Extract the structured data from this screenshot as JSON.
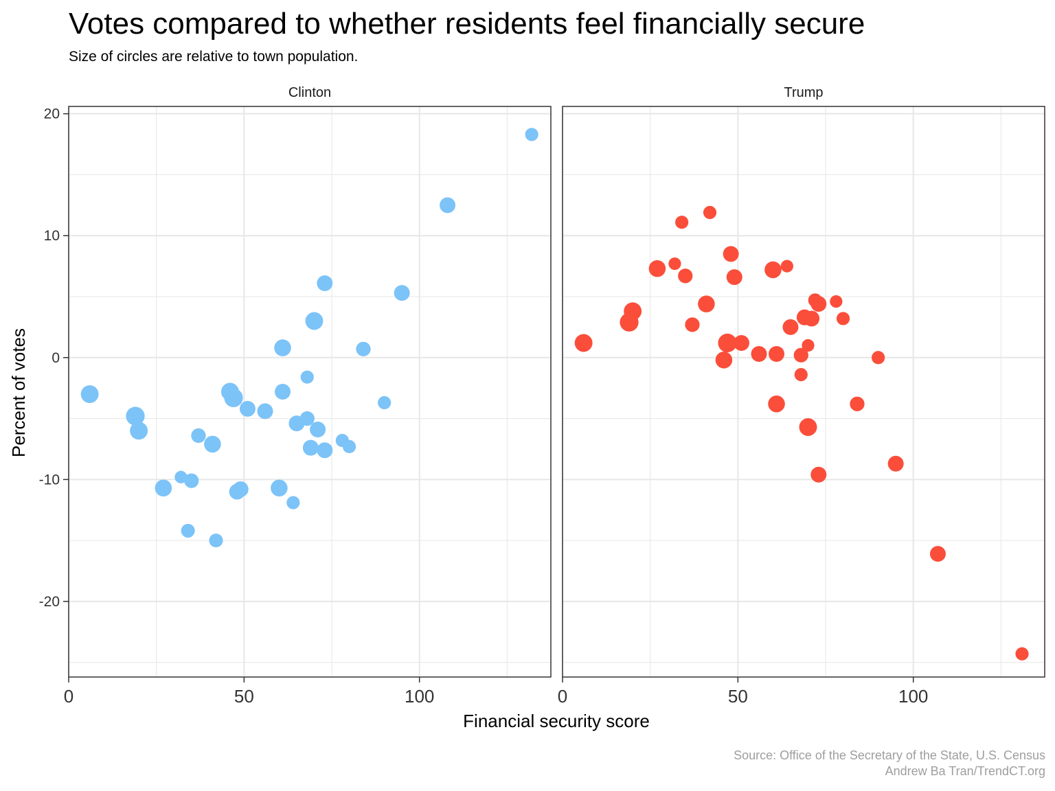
{
  "title": "Votes compared to whether residents feel financially secure",
  "subtitle": "Size of circles are relative to town population.",
  "caption": {
    "line1": "Source: Office of the Secretary of the State, U.S. Census",
    "line2": "Andrew Ba Tran/TrendCT.org"
  },
  "colors": {
    "clinton": "#7cc3f8",
    "trump": "#fa4e3b",
    "grid": "#e6e6e6",
    "panel_border": "#333333",
    "caption": "#9e9e9e"
  },
  "chart_data": {
    "type": "scatter",
    "xlabel": "Financial security score",
    "ylabel": "Percent of votes",
    "xlim": [
      0,
      138
    ],
    "ylim": [
      -26.2,
      20.6
    ],
    "x_ticks": [
      0,
      50,
      100
    ],
    "y_ticks": [
      20,
      10,
      0,
      -10,
      -20
    ],
    "grid": true,
    "point_size": "relative to town population",
    "facets": [
      {
        "name": "Clinton",
        "color": "#7cc3f8",
        "points": [
          {
            "x": 132,
            "y": 18.3,
            "size": 1
          },
          {
            "x": 108,
            "y": 12.5,
            "size": 2
          },
          {
            "x": 73,
            "y": 6.1,
            "size": 2
          },
          {
            "x": 95,
            "y": 5.3,
            "size": 2
          },
          {
            "x": 70,
            "y": 3.0,
            "size": 3
          },
          {
            "x": 61,
            "y": 0.8,
            "size": 2.5
          },
          {
            "x": 84,
            "y": 0.7,
            "size": 1.5
          },
          {
            "x": 68,
            "y": -1.6,
            "size": 1
          },
          {
            "x": 6,
            "y": -3.0,
            "size": 3
          },
          {
            "x": 46,
            "y": -2.8,
            "size": 3
          },
          {
            "x": 47,
            "y": -3.3,
            "size": 3.5
          },
          {
            "x": 61,
            "y": -2.8,
            "size": 2
          },
          {
            "x": 90,
            "y": -3.7,
            "size": 1
          },
          {
            "x": 51,
            "y": -4.2,
            "size": 2
          },
          {
            "x": 56,
            "y": -4.4,
            "size": 2
          },
          {
            "x": 19,
            "y": -4.8,
            "size": 3.5
          },
          {
            "x": 68,
            "y": -5.0,
            "size": 1.5
          },
          {
            "x": 65,
            "y": -5.4,
            "size": 2
          },
          {
            "x": 71,
            "y": -5.9,
            "size": 2
          },
          {
            "x": 20,
            "y": -6.0,
            "size": 3
          },
          {
            "x": 37,
            "y": -6.4,
            "size": 1.5
          },
          {
            "x": 78,
            "y": -6.8,
            "size": 1
          },
          {
            "x": 41,
            "y": -7.1,
            "size": 2.5
          },
          {
            "x": 80,
            "y": -7.3,
            "size": 1
          },
          {
            "x": 69,
            "y": -7.4,
            "size": 2
          },
          {
            "x": 73,
            "y": -7.6,
            "size": 2
          },
          {
            "x": 32,
            "y": -9.8,
            "size": 0.8
          },
          {
            "x": 35,
            "y": -10.1,
            "size": 1.5
          },
          {
            "x": 27,
            "y": -10.7,
            "size": 2.5
          },
          {
            "x": 60,
            "y": -10.7,
            "size": 2.5
          },
          {
            "x": 49,
            "y": -10.8,
            "size": 2
          },
          {
            "x": 48,
            "y": -11.0,
            "size": 2
          },
          {
            "x": 64,
            "y": -11.9,
            "size": 1
          },
          {
            "x": 34,
            "y": -14.2,
            "size": 1.2
          },
          {
            "x": 42,
            "y": -15.0,
            "size": 1.2
          }
        ]
      },
      {
        "name": "Trump",
        "color": "#fa4e3b",
        "points": [
          {
            "x": 42,
            "y": 11.9,
            "size": 1
          },
          {
            "x": 34,
            "y": 11.1,
            "size": 1
          },
          {
            "x": 48,
            "y": 8.5,
            "size": 2
          },
          {
            "x": 32,
            "y": 7.7,
            "size": 0.8
          },
          {
            "x": 64,
            "y": 7.5,
            "size": 0.8
          },
          {
            "x": 27,
            "y": 7.3,
            "size": 2.5
          },
          {
            "x": 60,
            "y": 7.2,
            "size": 2.5
          },
          {
            "x": 35,
            "y": 6.7,
            "size": 1.5
          },
          {
            "x": 49,
            "y": 6.6,
            "size": 2
          },
          {
            "x": 72,
            "y": 4.7,
            "size": 1.2
          },
          {
            "x": 78,
            "y": 4.6,
            "size": 0.8
          },
          {
            "x": 41,
            "y": 4.4,
            "size": 2.5
          },
          {
            "x": 73,
            "y": 4.4,
            "size": 2
          },
          {
            "x": 20,
            "y": 3.8,
            "size": 3
          },
          {
            "x": 69,
            "y": 3.3,
            "size": 2
          },
          {
            "x": 80,
            "y": 3.2,
            "size": 1
          },
          {
            "x": 71,
            "y": 3.2,
            "size": 2
          },
          {
            "x": 19,
            "y": 2.9,
            "size": 3.5
          },
          {
            "x": 37,
            "y": 2.7,
            "size": 1.5
          },
          {
            "x": 65,
            "y": 2.5,
            "size": 2
          },
          {
            "x": 6,
            "y": 1.2,
            "size": 3
          },
          {
            "x": 47,
            "y": 1.2,
            "size": 3.5
          },
          {
            "x": 51,
            "y": 1.2,
            "size": 2
          },
          {
            "x": 70,
            "y": 1.0,
            "size": 0.8
          },
          {
            "x": 56,
            "y": 0.3,
            "size": 2
          },
          {
            "x": 61,
            "y": 0.3,
            "size": 2
          },
          {
            "x": 68,
            "y": 0.2,
            "size": 1.5
          },
          {
            "x": 90,
            "y": 0.0,
            "size": 1
          },
          {
            "x": 46,
            "y": -0.2,
            "size": 2.5
          },
          {
            "x": 68,
            "y": -1.4,
            "size": 1
          },
          {
            "x": 61,
            "y": -3.8,
            "size": 2.5
          },
          {
            "x": 84,
            "y": -3.8,
            "size": 1.5
          },
          {
            "x": 70,
            "y": -5.7,
            "size": 3
          },
          {
            "x": 95,
            "y": -8.7,
            "size": 2
          },
          {
            "x": 73,
            "y": -9.6,
            "size": 2
          },
          {
            "x": 107,
            "y": -16.1,
            "size": 2
          },
          {
            "x": 131,
            "y": -24.3,
            "size": 1
          }
        ]
      }
    ]
  }
}
